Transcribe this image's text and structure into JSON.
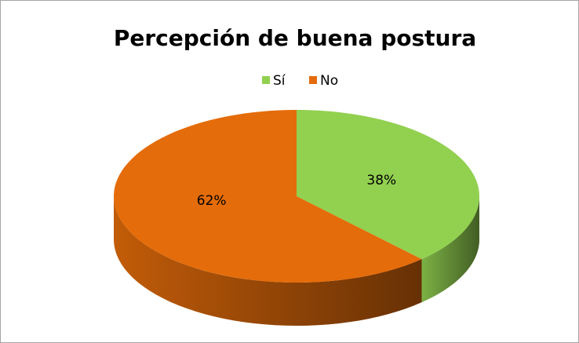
{
  "chart_data": {
    "type": "pie",
    "title": "Percepción de buena postura",
    "categories": [
      "Sí",
      "No"
    ],
    "values": [
      38,
      62
    ],
    "value_labels": [
      "38%",
      "62%"
    ],
    "colors": [
      "#92d050",
      "#e46c0a"
    ],
    "legend": "top"
  }
}
